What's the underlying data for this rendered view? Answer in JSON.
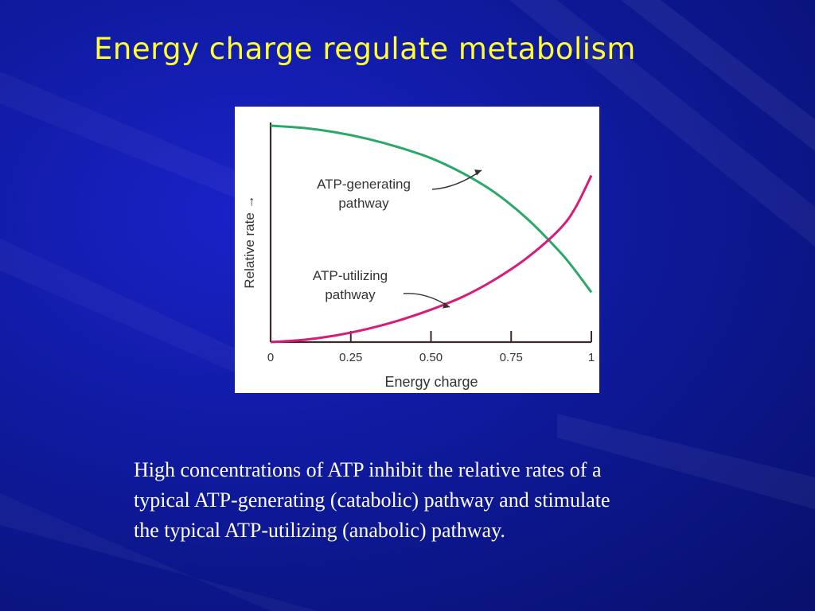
{
  "slide": {
    "title": "Energy charge regulate metabolism",
    "caption_lines": [
      "High concentrations of ATP inhibit the relative rates of a",
      "typical ATP-generating (catabolic) pathway and stimulate",
      "the typical ATP-utilizing (anabolic) pathway."
    ]
  },
  "colors": {
    "title": "#ffff33",
    "background": "#0f1a9e",
    "generating_curve": "#2aa86a",
    "utilizing_curve": "#d81b78",
    "axis": "#3a2a2a"
  },
  "chart_data": {
    "type": "line",
    "xlabel": "Energy charge",
    "ylabel": "Relative rate →",
    "xlim": [
      0,
      1
    ],
    "ylim": [
      0,
      1
    ],
    "x_ticks": [
      0,
      0.25,
      0.5,
      0.75,
      1
    ],
    "x_tick_labels": [
      "0",
      "0.25",
      "0.50",
      "0.75",
      "1"
    ],
    "grid": false,
    "series": [
      {
        "name": "ATP-generating pathway",
        "name_lines": [
          "ATP-generating",
          "pathway"
        ],
        "x": [
          0,
          0.1,
          0.2,
          0.3,
          0.4,
          0.5,
          0.6,
          0.7,
          0.8,
          0.9,
          0.95,
          1.0
        ],
        "y": [
          1.0,
          0.99,
          0.97,
          0.94,
          0.9,
          0.85,
          0.78,
          0.69,
          0.57,
          0.42,
          0.33,
          0.23
        ]
      },
      {
        "name": "ATP-utilizing pathway",
        "name_lines": [
          "ATP-utilizing",
          "pathway"
        ],
        "x": [
          0,
          0.1,
          0.2,
          0.3,
          0.4,
          0.5,
          0.6,
          0.7,
          0.8,
          0.9,
          0.95,
          1.0
        ],
        "y": [
          0.0,
          0.01,
          0.03,
          0.06,
          0.1,
          0.15,
          0.21,
          0.29,
          0.39,
          0.52,
          0.62,
          0.77
        ]
      }
    ]
  }
}
